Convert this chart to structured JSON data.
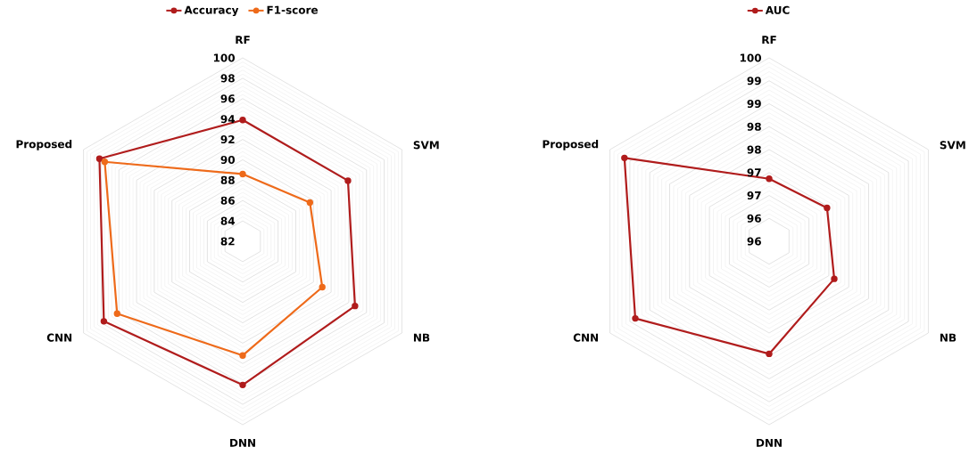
{
  "chart_data": [
    {
      "type": "radar",
      "categories": [
        "RF",
        "SVM",
        "NB",
        "DNN",
        "CNN",
        "Proposed"
      ],
      "legend": "top",
      "marker": "circle",
      "grid": true,
      "ylim": [
        82,
        100
      ],
      "yticks": [
        82,
        84,
        86,
        88,
        90,
        92,
        94,
        96,
        98,
        100
      ],
      "series": [
        {
          "name": "Accuracy",
          "color": "#b01c1c",
          "values": [
            93.9,
            93.9,
            94.7,
            96.1,
            97.7,
            98.2
          ]
        },
        {
          "name": "F1-score",
          "color": "#ee6a1a",
          "values": [
            88.6,
            89.6,
            91.0,
            93.2,
            96.2,
            97.6
          ]
        }
      ]
    },
    {
      "type": "radar",
      "categories": [
        "RF",
        "SVM",
        "NB",
        "DNN",
        "CNN",
        "Proposed"
      ],
      "legend": "top",
      "marker": "circle",
      "grid": true,
      "ylim": [
        95.6,
        100
      ],
      "yticks": [
        {
          "value": 95.6,
          "label": "96"
        },
        {
          "value": 96.15,
          "label": "96"
        },
        {
          "value": 96.7,
          "label": "97"
        },
        {
          "value": 97.25,
          "label": "97"
        },
        {
          "value": 97.8,
          "label": "98"
        },
        {
          "value": 98.35,
          "label": "98"
        },
        {
          "value": 98.9,
          "label": "99"
        },
        {
          "value": 99.45,
          "label": "99"
        },
        {
          "value": 100,
          "label": "100"
        }
      ],
      "series": [
        {
          "name": "AUC",
          "color": "#b01c1c",
          "values": [
            97.1,
            97.2,
            97.4,
            98.3,
            99.3,
            99.6
          ]
        }
      ]
    }
  ]
}
